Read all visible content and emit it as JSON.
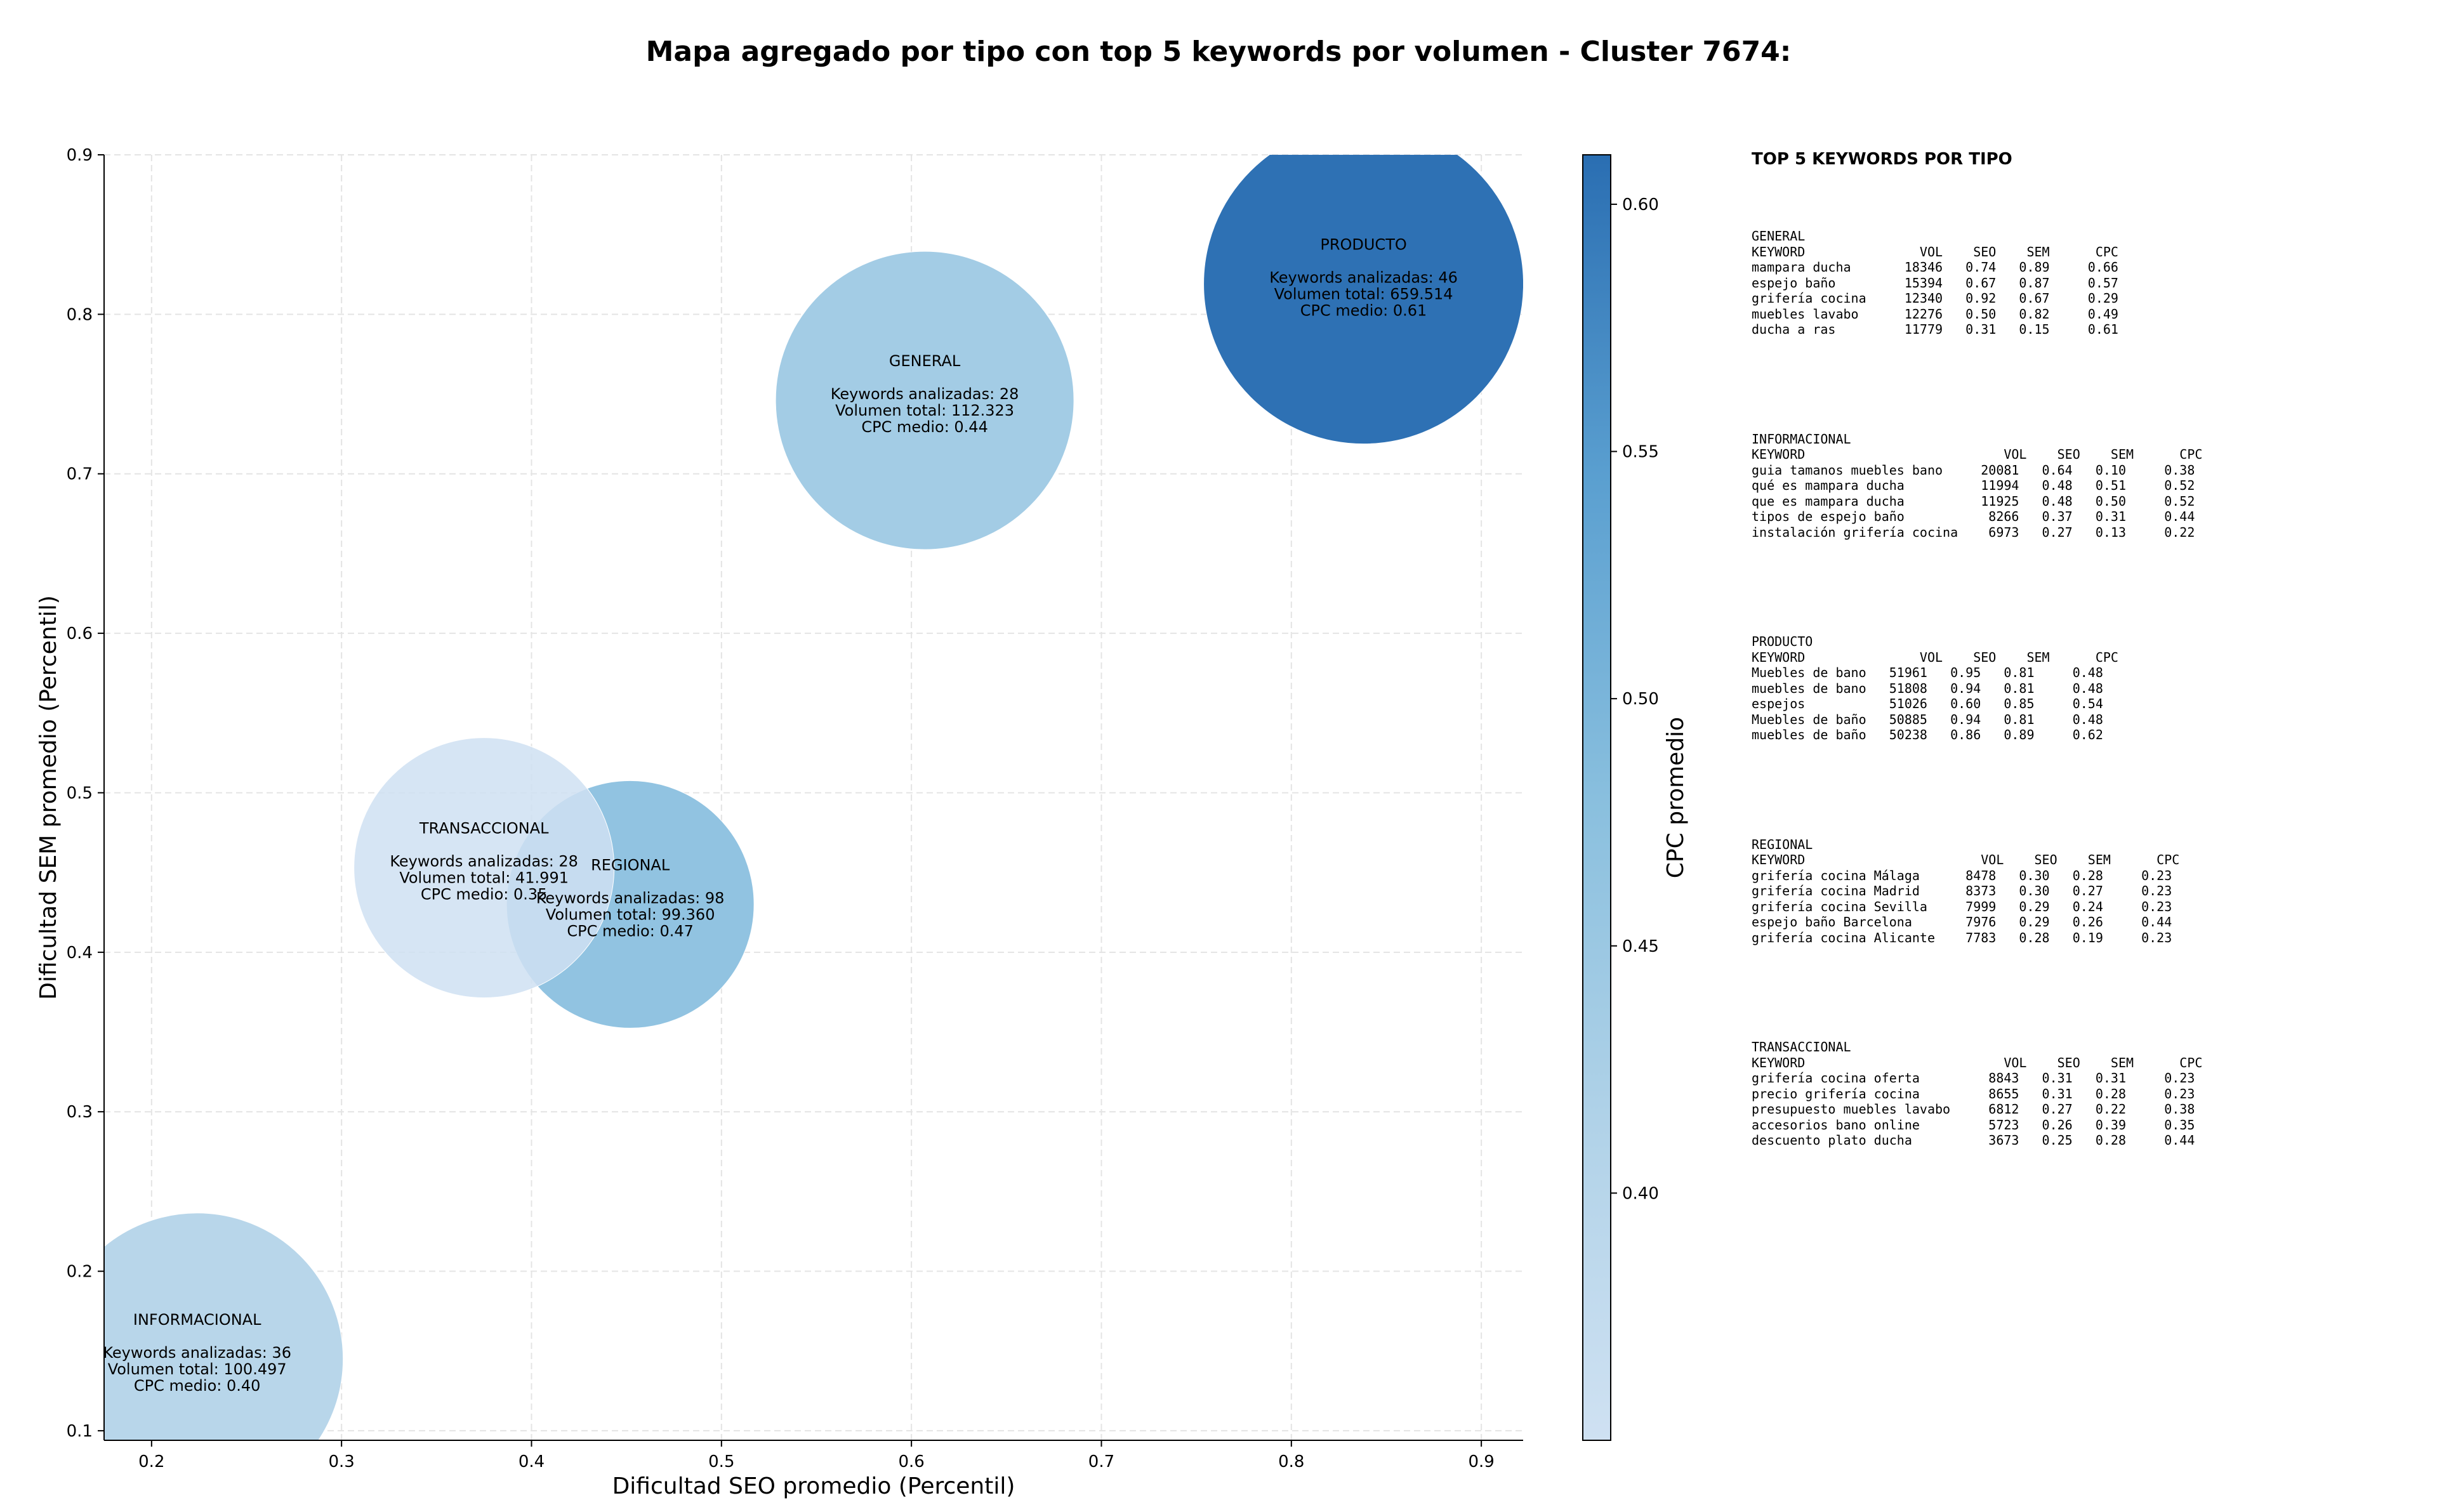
{
  "title": "Mapa agregado por tipo con top 5 keywords por volumen - Cluster 7674:",
  "chart_data": {
    "type": "scatter",
    "title": "Mapa agregado por tipo con top 5 keywords por volumen - Cluster 7674:",
    "xlabel": "Dificultad SEO promedio (Percentil)",
    "ylabel": "Dificultad SEM promedio (Percentil)",
    "xlim": [
      0.175,
      0.922
    ],
    "ylim": [
      0.094,
      0.9
    ],
    "xticks": [
      "0.2",
      "0.3",
      "0.4",
      "0.5",
      "0.6",
      "0.7",
      "0.8",
      "0.9"
    ],
    "yticks": [
      "0.1",
      "0.2",
      "0.3",
      "0.4",
      "0.5",
      "0.6",
      "0.7",
      "0.8",
      "0.9"
    ],
    "grid": true,
    "colorbar": {
      "label": "CPC promedio",
      "range": [
        0.35,
        0.61
      ],
      "ticks": [
        "0.40",
        "0.45",
        "0.50",
        "0.55",
        "0.60"
      ]
    },
    "points": [
      {
        "name": "INFORMACIONAL",
        "x": 0.224,
        "y": 0.145,
        "cpc": 0.4,
        "volume": 100497,
        "keywords_label": "Keywords analizadas: 36",
        "volume_label": "Volumen total: 100.497",
        "cpc_label": "CPC medio: 0.40"
      },
      {
        "name": "REGIONAL",
        "x": 0.452,
        "y": 0.43,
        "cpc": 0.47,
        "volume": 99360,
        "keywords_label": "Keywords analizadas: 98",
        "volume_label": "Volumen total: 99.360",
        "cpc_label": "CPC medio: 0.47"
      },
      {
        "name": "TRANSACCIONAL",
        "x": 0.375,
        "y": 0.453,
        "cpc": 0.35,
        "volume": 41991,
        "keywords_label": "Keywords analizadas: 28",
        "volume_label": "Volumen total: 41.991",
        "cpc_label": "CPC medio: 0.35"
      },
      {
        "name": "GENERAL",
        "x": 0.607,
        "y": 0.746,
        "cpc": 0.44,
        "volume": 112323,
        "keywords_label": "Keywords analizadas: 28",
        "volume_label": "Volumen total: 112.323",
        "cpc_label": "CPC medio: 0.44"
      },
      {
        "name": "PRODUCTO",
        "x": 0.838,
        "y": 0.819,
        "cpc": 0.61,
        "volume": 659514,
        "keywords_label": "Keywords analizadas: 46",
        "volume_label": "Volumen total: 659.514",
        "cpc_label": "CPC medio: 0.61"
      }
    ]
  },
  "side_panel": {
    "title": "TOP 5 KEYWORDS POR TIPO",
    "blocks": [
      {
        "text": "GENERAL\nKEYWORD               VOL    SEO    SEM      CPC\nmampara ducha       18346   0.74   0.89     0.66\nespejo baño         15394   0.67   0.87     0.57\ngrifería cocina     12340   0.92   0.67     0.29\nmuebles lavabo      12276   0.50   0.82     0.49\nducha a ras         11779   0.31   0.15     0.61"
      },
      {
        "text": "INFORMACIONAL\nKEYWORD                          VOL    SEO    SEM      CPC\nguia tamanos muebles bano     20081   0.64   0.10     0.38\nqué es mampara ducha          11994   0.48   0.51     0.52\nque es mampara ducha          11925   0.48   0.50     0.52\ntipos de espejo baño           8266   0.37   0.31     0.44\ninstalación grifería cocina    6973   0.27   0.13     0.22"
      },
      {
        "text": "PRODUCTO\nKEYWORD               VOL    SEO    SEM      CPC\nMuebles de bano   51961   0.95   0.81     0.48\nmuebles de bano   51808   0.94   0.81     0.48\nespejos           51026   0.60   0.85     0.54\nMuebles de baño   50885   0.94   0.81     0.48\nmuebles de baño   50238   0.86   0.89     0.62"
      },
      {
        "text": "REGIONAL\nKEYWORD                       VOL    SEO    SEM      CPC\ngrifería cocina Málaga      8478   0.30   0.28     0.23\ngrifería cocina Madrid      8373   0.30   0.27     0.23\ngrifería cocina Sevilla     7999   0.29   0.24     0.23\nespejo baño Barcelona       7976   0.29   0.26     0.44\ngrifería cocina Alicante    7783   0.28   0.19     0.23"
      },
      {
        "text": "TRANSACCIONAL\nKEYWORD                          VOL    SEO    SEM      CPC\ngrifería cocina oferta         8843   0.31   0.31     0.23\nprecio grifería cocina         8655   0.31   0.28     0.23\npresupuesto muebles lavabo     6812   0.27   0.22     0.38\naccesorios bano online         5723   0.26   0.39     0.35\ndescuento plato ducha          3673   0.25   0.28     0.44"
      }
    ]
  }
}
